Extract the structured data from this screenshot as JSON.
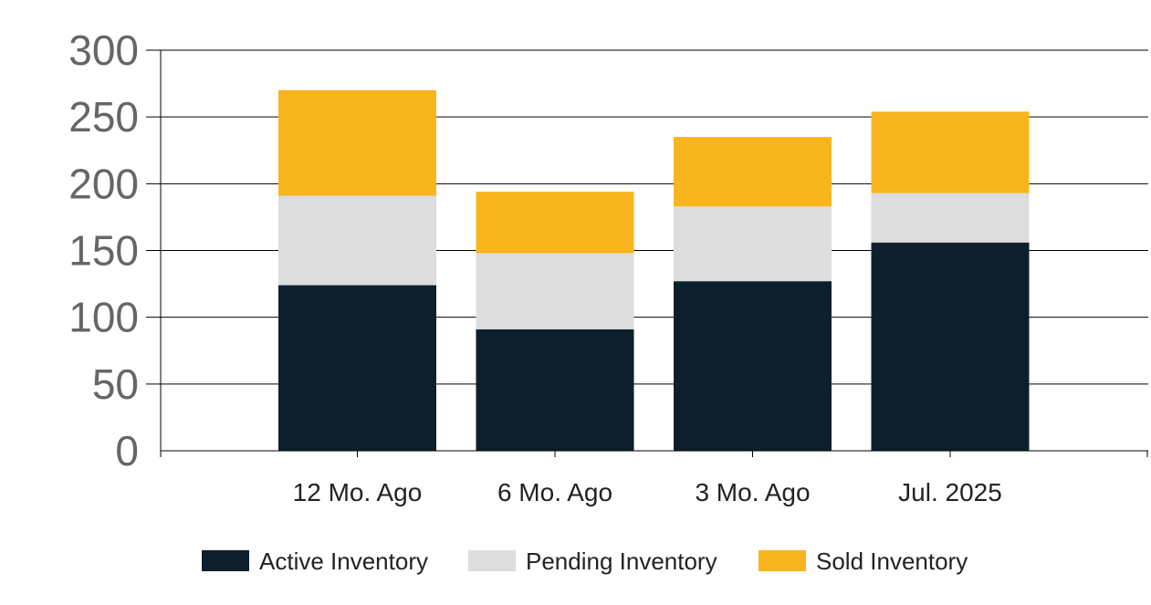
{
  "chart_data": {
    "type": "bar",
    "stacked": true,
    "categories": [
      "12 Mo. Ago",
      "6 Mo. Ago",
      "3 Mo. Ago",
      "Jul. 2025"
    ],
    "series": [
      {
        "name": "Active Inventory",
        "color": "#0d1f2a",
        "values": [
          124,
          91,
          127,
          156
        ]
      },
      {
        "name": "Pending Inventory",
        "color": "#dddddd",
        "values": [
          67,
          57,
          56,
          37
        ]
      },
      {
        "name": "Sold Inventory",
        "color": "#f9b51d",
        "values": [
          79,
          46,
          52,
          61
        ]
      }
    ],
    "ylim": [
      0,
      300
    ],
    "yticks": [
      "0",
      "50",
      "100",
      "150",
      "200",
      "250",
      "300"
    ],
    "grid": true,
    "legend_position": "bottom"
  }
}
